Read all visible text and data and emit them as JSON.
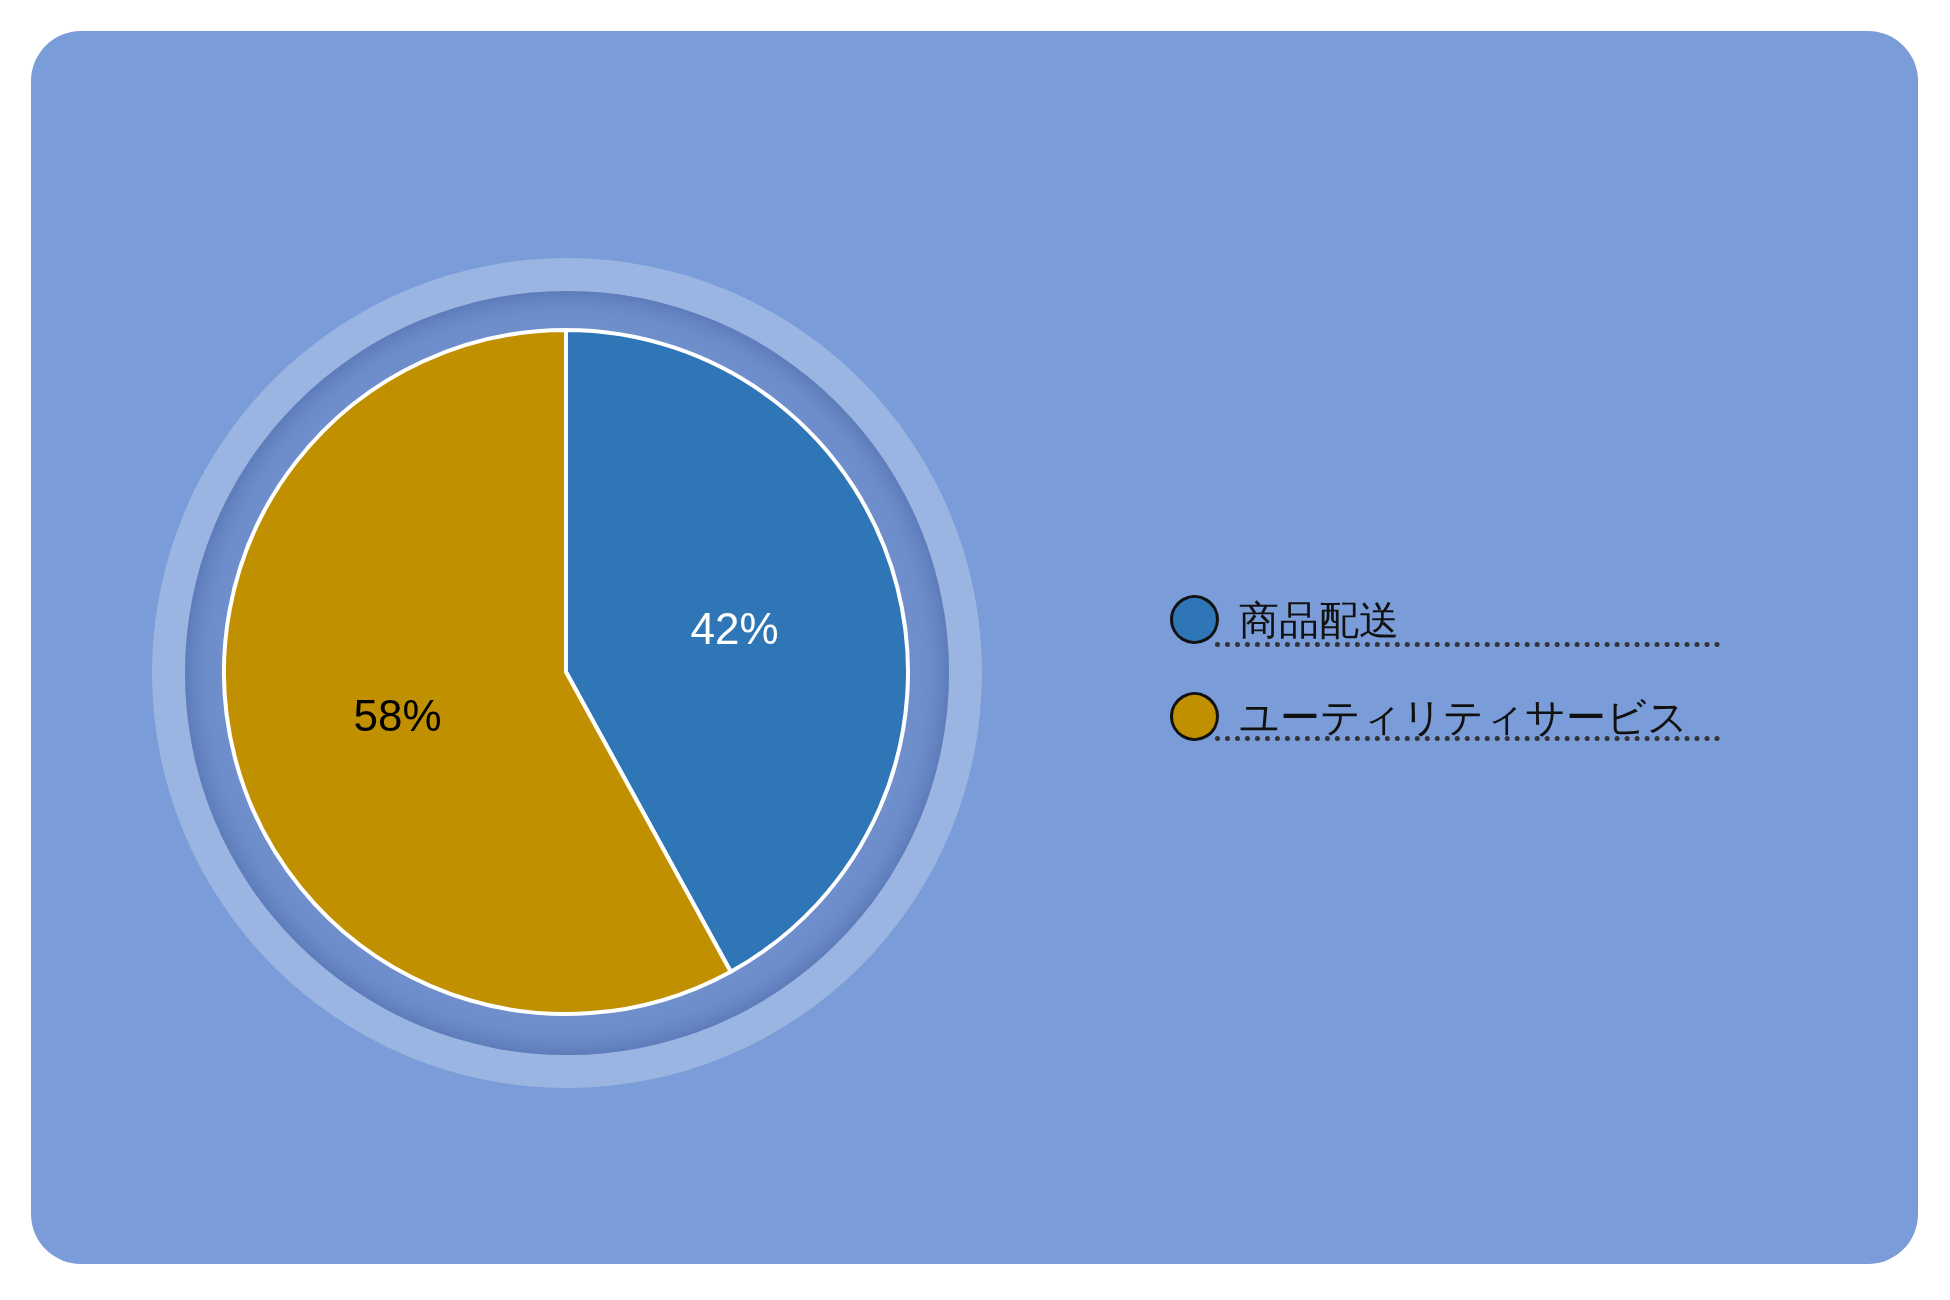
{
  "chart_data": {
    "type": "pie",
    "categories": [
      "商品配送",
      "ユーティリティサービス"
    ],
    "values": [
      42,
      58
    ],
    "colors": [
      "#2f76b7",
      "#c09000"
    ],
    "value_labels": [
      "42%",
      "58%"
    ],
    "legend": "right"
  }
}
